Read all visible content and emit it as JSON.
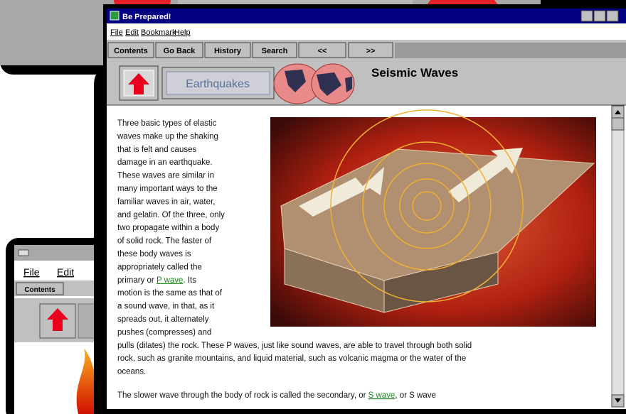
{
  "window": {
    "title": "Be Prepared!",
    "menu": [
      "File",
      "Edit",
      "Bookmark",
      "Help"
    ],
    "buttons": [
      "Contents",
      "Go Back",
      "History",
      "Search",
      "<<",
      ">>"
    ]
  },
  "header": {
    "topic_button": "Earthquakes",
    "title": "Seismic Waves"
  },
  "body": {
    "lines": [
      [
        {
          "text": "Three basic types of elastic"
        }
      ],
      [
        {
          "text": "waves make up the shaking"
        }
      ],
      [
        {
          "text": "that is felt and causes"
        }
      ],
      [
        {
          "text": "damage in an earthquake."
        }
      ],
      [
        {
          "text": "These waves are similar in"
        }
      ],
      [
        {
          "text": "many important ways to the"
        }
      ],
      [
        {
          "text": "familiar waves in air, water,"
        }
      ],
      [
        {
          "text": "and gelatin. Of the three, only"
        }
      ],
      [
        {
          "text": "two propagate within a body"
        }
      ],
      [
        {
          "text": "of solid rock. The faster of"
        }
      ],
      [
        {
          "text": "these body waves is"
        }
      ],
      [
        {
          "text": "appropriately called the"
        }
      ],
      [
        {
          "text": "primary or "
        },
        {
          "text": "P wave",
          "style": "link"
        },
        {
          "text": ". Its"
        }
      ],
      [
        {
          "text": "motion is the same as that of"
        }
      ],
      [
        {
          "text": "a sound wave, in that, as it"
        }
      ],
      [
        {
          "text": "spreads out, it alternately"
        }
      ],
      [
        {
          "text": "pushes (compresses) and"
        }
      ],
      [
        {
          "text": "pulls (dilates) the rock. These P waves, just like sound waves, are able to travel through both solid"
        }
      ],
      [
        {
          "text": "rock, such as granite mountains, and liquid material, such as volcanic magma or the water of the"
        }
      ],
      [
        {
          "text": "oceans."
        }
      ]
    ],
    "next_line": [
      {
        "text": "The slower wave through the body of rock is called the secondary, or "
      },
      {
        "text": "S wave",
        "style": "link"
      },
      {
        "text": ", or S wave"
      }
    ]
  },
  "back_window": {
    "menu": [
      "File",
      "Edit"
    ],
    "buttons": [
      "Contents"
    ]
  }
}
